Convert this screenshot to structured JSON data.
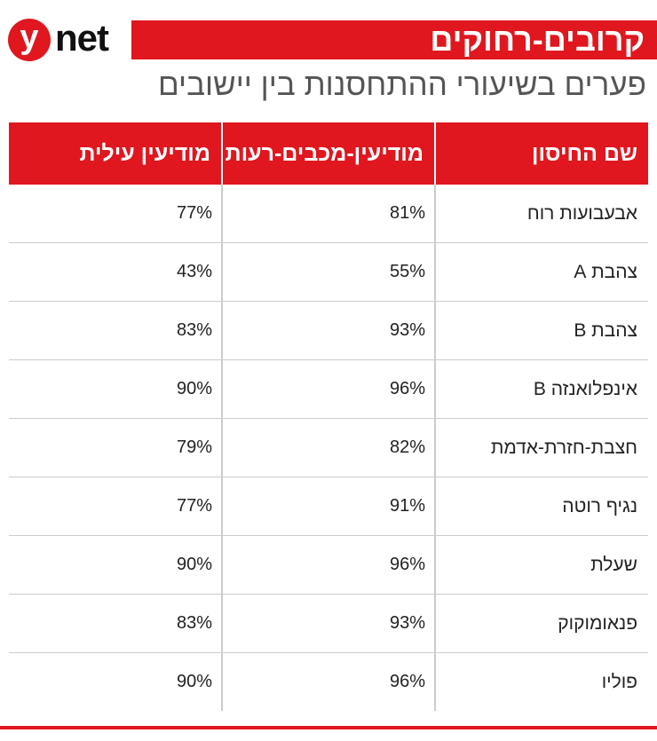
{
  "logo": {
    "letter": "y",
    "text": "net"
  },
  "header": {
    "title": "קרובים-רחוקים",
    "subtitle": "פערים בשיעורי ההתחסנות בין יישובים"
  },
  "table": {
    "columns": [
      "שם החיסון",
      "מודיעין-מכבים-רעות",
      "מודיעין עילית"
    ],
    "rows": [
      [
        "אבעבועות רוח",
        "81%",
        "77%"
      ],
      [
        "צהבת A",
        "55%",
        "43%"
      ],
      [
        "צהבת B",
        "93%",
        "83%"
      ],
      [
        "אינפלואנזה B",
        "96%",
        "90%"
      ],
      [
        "חצבת-חזרת-אדמת",
        "82%",
        "79%"
      ],
      [
        "נגיף רוטה",
        "91%",
        "77%"
      ],
      [
        "שעלת",
        "96%",
        "90%"
      ],
      [
        "פנאומוקוק",
        "93%",
        "83%"
      ],
      [
        "פוליו",
        "96%",
        "90%"
      ]
    ]
  }
}
